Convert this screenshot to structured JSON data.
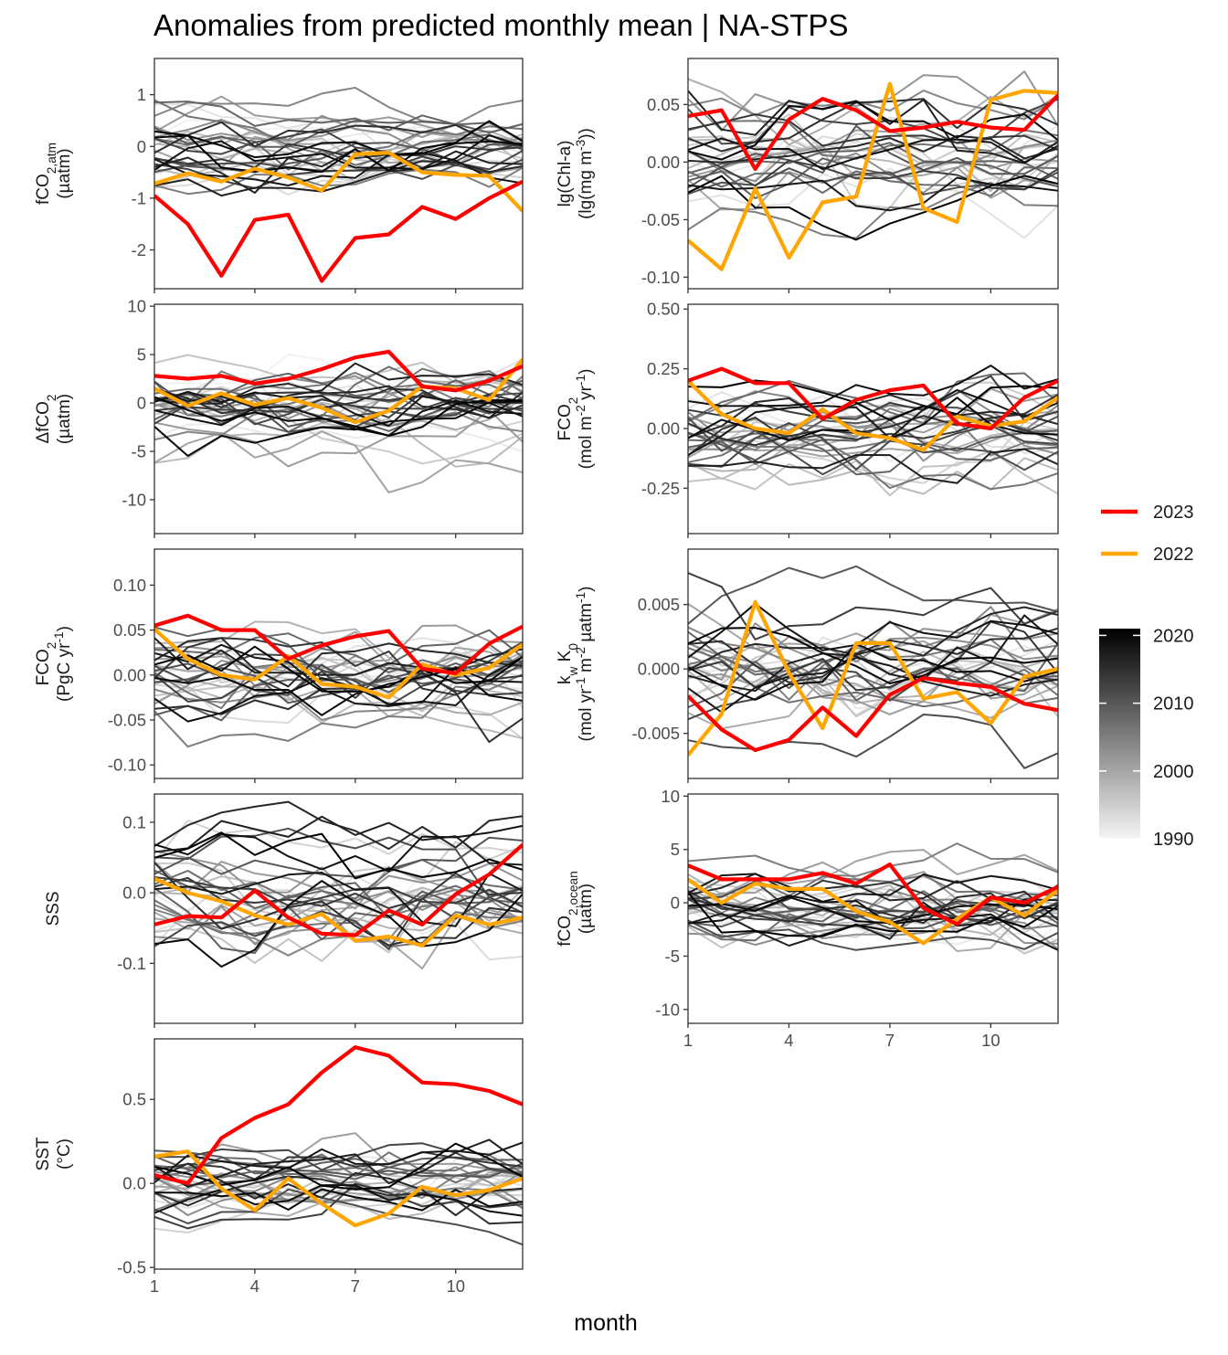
{
  "title": "Anomalies from predicted monthly mean | NA-STPS",
  "x_axis_title": "month",
  "legend": {
    "series": [
      {
        "label": "2023",
        "color": "#ff0000"
      },
      {
        "label": "2022",
        "color": "#ffa500"
      }
    ],
    "colorbar": {
      "ticks": [
        "2020",
        "2010",
        "2000",
        "1990"
      ],
      "range": [
        1990,
        2021
      ],
      "low_color": "#f5f5f5",
      "high_color": "#000000"
    }
  },
  "chart_data": [
    {
      "id": "fco2-atm",
      "type": "line",
      "ylabel": [
        "fCO2,atm",
        "(µatm)"
      ],
      "ylim": [
        -2.75,
        1.7
      ],
      "yticks": [
        1,
        0,
        -1,
        -2
      ],
      "ytick_labels": [
        "1",
        "0",
        "-1",
        "-2"
      ],
      "xlim": [
        1,
        12
      ],
      "xticks": [
        1,
        4,
        7,
        10
      ],
      "show_x_labels": false,
      "background_spread": 0.45,
      "background_bias": 0.0,
      "series": [
        {
          "name": "2023",
          "x": [
            1,
            2,
            3,
            4,
            5,
            6,
            7,
            8,
            9,
            10,
            11,
            12
          ],
          "values": [
            -0.95,
            -1.5,
            -2.5,
            -1.42,
            -1.32,
            -2.6,
            -1.77,
            -1.7,
            -1.17,
            -1.4,
            -1.0,
            -0.68
          ]
        },
        {
          "name": "2022",
          "x": [
            1,
            2,
            3,
            4,
            5,
            6,
            7,
            8,
            9,
            10,
            11,
            12
          ],
          "values": [
            -0.72,
            -0.52,
            -0.68,
            -0.43,
            -0.6,
            -0.85,
            -0.15,
            -0.12,
            -0.5,
            -0.55,
            -0.57,
            -1.25
          ]
        }
      ]
    },
    {
      "id": "chl-a",
      "type": "line",
      "ylabel": [
        "lg(Chl-a)",
        "(lg(mg m-3))"
      ],
      "ylim": [
        -0.11,
        0.09
      ],
      "yticks": [
        0.05,
        0.0,
        -0.05,
        -0.1
      ],
      "ytick_labels": [
        "0.05",
        "0.00",
        "-0.05",
        "-0.10"
      ],
      "xlim": [
        1,
        12
      ],
      "xticks": [
        1,
        4,
        7,
        10
      ],
      "show_x_labels": false,
      "background_spread": 0.028,
      "background_bias": 0.0,
      "series": [
        {
          "name": "2023",
          "x": [
            1,
            2,
            3,
            4,
            5,
            6,
            7,
            8,
            9,
            10,
            11,
            12
          ],
          "values": [
            0.04,
            0.045,
            -0.006,
            0.037,
            0.055,
            0.045,
            0.027,
            0.03,
            0.035,
            0.03,
            0.028,
            0.058
          ]
        },
        {
          "name": "2022",
          "x": [
            1,
            2,
            3,
            4,
            5,
            6,
            7,
            8,
            9,
            10,
            11,
            12
          ],
          "values": [
            -0.068,
            -0.093,
            -0.023,
            -0.083,
            -0.035,
            -0.03,
            0.068,
            -0.04,
            -0.052,
            0.054,
            0.062,
            0.06
          ]
        }
      ]
    },
    {
      "id": "delta-fco2",
      "type": "line",
      "ylabel": [
        "ΔfCO2",
        "(µatm)"
      ],
      "ylim": [
        -13.5,
        10.2
      ],
      "yticks": [
        10,
        5,
        0,
        -5,
        -10
      ],
      "ytick_labels": [
        "10",
        "5",
        "0",
        "-5",
        "-10"
      ],
      "xlim": [
        1,
        12
      ],
      "xticks": [
        1,
        4,
        7,
        10
      ],
      "show_x_labels": false,
      "background_spread": 2.6,
      "background_bias": -0.3,
      "series": [
        {
          "name": "2023",
          "x": [
            1,
            2,
            3,
            4,
            5,
            6,
            7,
            8,
            9,
            10,
            11,
            12
          ],
          "values": [
            2.8,
            2.5,
            2.8,
            2.0,
            2.5,
            3.5,
            4.7,
            5.3,
            1.7,
            1.3,
            2.3,
            3.8
          ]
        },
        {
          "name": "2022",
          "x": [
            1,
            2,
            3,
            4,
            5,
            6,
            7,
            8,
            9,
            10,
            11,
            12
          ],
          "values": [
            1.5,
            -0.3,
            1.0,
            -0.2,
            0.5,
            -0.5,
            -2.0,
            -0.8,
            1.7,
            1.5,
            0.3,
            4.5
          ]
        }
      ]
    },
    {
      "id": "fco2-flux",
      "type": "line",
      "ylabel": [
        "FCO2",
        "(mol m-2 yr-1)"
      ],
      "ylim": [
        -0.44,
        0.52
      ],
      "yticks": [
        0.5,
        0.25,
        0.0,
        -0.25
      ],
      "ytick_labels": [
        "0.50",
        "0.25",
        "0.00",
        "-0.25"
      ],
      "xlim": [
        1,
        12
      ],
      "xticks": [
        1,
        4,
        7,
        10
      ],
      "show_x_labels": false,
      "background_spread": 0.12,
      "background_bias": -0.02,
      "series": [
        {
          "name": "2023",
          "x": [
            1,
            2,
            3,
            4,
            5,
            6,
            7,
            8,
            9,
            10,
            11,
            12
          ],
          "values": [
            0.2,
            0.25,
            0.19,
            0.19,
            0.04,
            0.12,
            0.16,
            0.18,
            0.02,
            0.0,
            0.13,
            0.2
          ]
        },
        {
          "name": "2022",
          "x": [
            1,
            2,
            3,
            4,
            5,
            6,
            7,
            8,
            9,
            10,
            11,
            12
          ],
          "values": [
            0.2,
            0.06,
            0.0,
            -0.02,
            0.08,
            -0.02,
            -0.04,
            -0.09,
            0.05,
            0.01,
            0.03,
            0.13
          ]
        }
      ]
    },
    {
      "id": "fco2-pgc",
      "type": "line",
      "ylabel": [
        "FCO2",
        "(PgC yr-1)"
      ],
      "ylim": [
        -0.115,
        0.14
      ],
      "yticks": [
        0.1,
        0.05,
        0.0,
        -0.05,
        -0.1
      ],
      "ytick_labels": [
        "0.10",
        "0.05",
        "0.00",
        "-0.05",
        "-0.10"
      ],
      "xlim": [
        1,
        12
      ],
      "xticks": [
        1,
        4,
        7,
        10
      ],
      "show_x_labels": false,
      "background_spread": 0.032,
      "background_bias": -0.005,
      "series": [
        {
          "name": "2023",
          "x": [
            1,
            2,
            3,
            4,
            5,
            6,
            7,
            8,
            9,
            10,
            11,
            12
          ],
          "values": [
            0.055,
            0.066,
            0.05,
            0.05,
            0.018,
            0.033,
            0.043,
            0.049,
            0.007,
            0.002,
            0.035,
            0.054
          ]
        },
        {
          "name": "2022",
          "x": [
            1,
            2,
            3,
            4,
            5,
            6,
            7,
            8,
            9,
            10,
            11,
            12
          ],
          "values": [
            0.051,
            0.018,
            0.0,
            -0.005,
            0.021,
            -0.01,
            -0.013,
            -0.025,
            0.012,
            0.0,
            0.008,
            0.034
          ]
        }
      ]
    },
    {
      "id": "kw-k0",
      "type": "line",
      "ylabel": [
        "kw K0",
        "(mol yr-1 m-2 µatm-1)"
      ],
      "ylim": [
        -0.0085,
        0.0093
      ],
      "yticks": [
        0.005,
        0.0,
        -0.005
      ],
      "ytick_labels": [
        "0.005",
        "0.000",
        "-0.005"
      ],
      "xlim": [
        1,
        12
      ],
      "xticks": [
        1,
        4,
        7,
        10
      ],
      "show_x_labels": false,
      "background_spread": 0.0028,
      "background_bias": 0.0,
      "series": [
        {
          "name": "2023",
          "x": [
            1,
            2,
            3,
            4,
            5,
            6,
            7,
            8,
            9,
            10,
            11,
            12
          ],
          "values": [
            -0.0021,
            -0.0047,
            -0.0063,
            -0.0055,
            -0.003,
            -0.0052,
            -0.002,
            -0.0007,
            -0.0011,
            -0.0014,
            -0.0027,
            -0.0032
          ]
        },
        {
          "name": "2022",
          "x": [
            1,
            2,
            3,
            4,
            5,
            6,
            7,
            8,
            9,
            10,
            11,
            12
          ],
          "values": [
            -0.0067,
            -0.0035,
            0.0052,
            -0.0003,
            -0.0046,
            0.002,
            0.002,
            -0.0023,
            -0.0018,
            -0.0042,
            -0.0006,
            0.0
          ]
        }
      ]
    },
    {
      "id": "sss",
      "type": "line",
      "ylabel": [
        "SSS"
      ],
      "ylim": [
        -0.185,
        0.14
      ],
      "yticks": [
        0.1,
        0.0,
        -0.1
      ],
      "ytick_labels": [
        "0.1",
        "0.0",
        "-0.1"
      ],
      "xlim": [
        1,
        12
      ],
      "xticks": [
        1,
        4,
        7,
        10
      ],
      "show_x_labels": false,
      "background_spread": 0.048,
      "background_bias": 0.0,
      "series": [
        {
          "name": "2023",
          "x": [
            1,
            2,
            3,
            4,
            5,
            6,
            7,
            8,
            9,
            10,
            11,
            12
          ],
          "values": [
            -0.045,
            -0.033,
            -0.035,
            0.003,
            -0.035,
            -0.058,
            -0.06,
            -0.025,
            -0.045,
            -0.002,
            0.026,
            0.068
          ]
        },
        {
          "name": "2022",
          "x": [
            1,
            2,
            3,
            4,
            5,
            6,
            7,
            8,
            9,
            10,
            11,
            12
          ],
          "values": [
            0.02,
            0.0,
            -0.012,
            -0.032,
            -0.045,
            -0.03,
            -0.068,
            -0.062,
            -0.075,
            -0.032,
            -0.045,
            -0.035
          ]
        }
      ]
    },
    {
      "id": "fco2-ocean",
      "type": "line",
      "ylabel": [
        "fCO2,ocean",
        "(µatm)"
      ],
      "ylim": [
        -11.3,
        10.2
      ],
      "yticks": [
        10,
        5,
        0,
        -5,
        -10
      ],
      "ytick_labels": [
        "10",
        "5",
        "0",
        "-5",
        "-10"
      ],
      "xlim": [
        1,
        12
      ],
      "xticks": [
        1,
        4,
        7,
        10
      ],
      "show_x_labels": true,
      "background_spread": 2.4,
      "background_bias": -0.3,
      "series": [
        {
          "name": "2023",
          "x": [
            1,
            2,
            3,
            4,
            5,
            6,
            7,
            8,
            9,
            10,
            11,
            12
          ],
          "values": [
            3.5,
            2.2,
            2.2,
            2.2,
            2.8,
            1.8,
            3.6,
            -0.5,
            -2.0,
            0.5,
            0.0,
            1.5
          ]
        },
        {
          "name": "2022",
          "x": [
            1,
            2,
            3,
            4,
            5,
            6,
            7,
            8,
            9,
            10,
            11,
            12
          ],
          "values": [
            2.2,
            0.0,
            1.8,
            1.3,
            1.3,
            -0.8,
            -1.8,
            -3.8,
            -1.5,
            0.5,
            -1.2,
            1.2
          ]
        }
      ]
    },
    {
      "id": "sst",
      "type": "line",
      "ylabel": [
        "SST",
        "(°C)"
      ],
      "ylim": [
        -0.51,
        0.86
      ],
      "yticks": [
        0.5,
        0.0,
        -0.5
      ],
      "ytick_labels": [
        "0.5",
        "0.0",
        "-0.5"
      ],
      "xlim": [
        1,
        12
      ],
      "xticks": [
        1,
        4,
        7,
        10
      ],
      "show_x_labels": true,
      "background_spread": 0.13,
      "background_bias": 0.0,
      "series": [
        {
          "name": "2023",
          "x": [
            1,
            2,
            3,
            4,
            5,
            6,
            7,
            8,
            9,
            10,
            11,
            12
          ],
          "values": [
            0.05,
            0.0,
            0.27,
            0.39,
            0.47,
            0.66,
            0.81,
            0.76,
            0.6,
            0.59,
            0.55,
            0.47
          ]
        },
        {
          "name": "2022",
          "x": [
            1,
            2,
            3,
            4,
            5,
            6,
            7,
            8,
            9,
            10,
            11,
            12
          ],
          "values": [
            0.16,
            0.19,
            -0.03,
            -0.16,
            0.03,
            -0.12,
            -0.25,
            -0.18,
            -0.02,
            -0.07,
            -0.04,
            0.03
          ]
        }
      ]
    }
  ]
}
